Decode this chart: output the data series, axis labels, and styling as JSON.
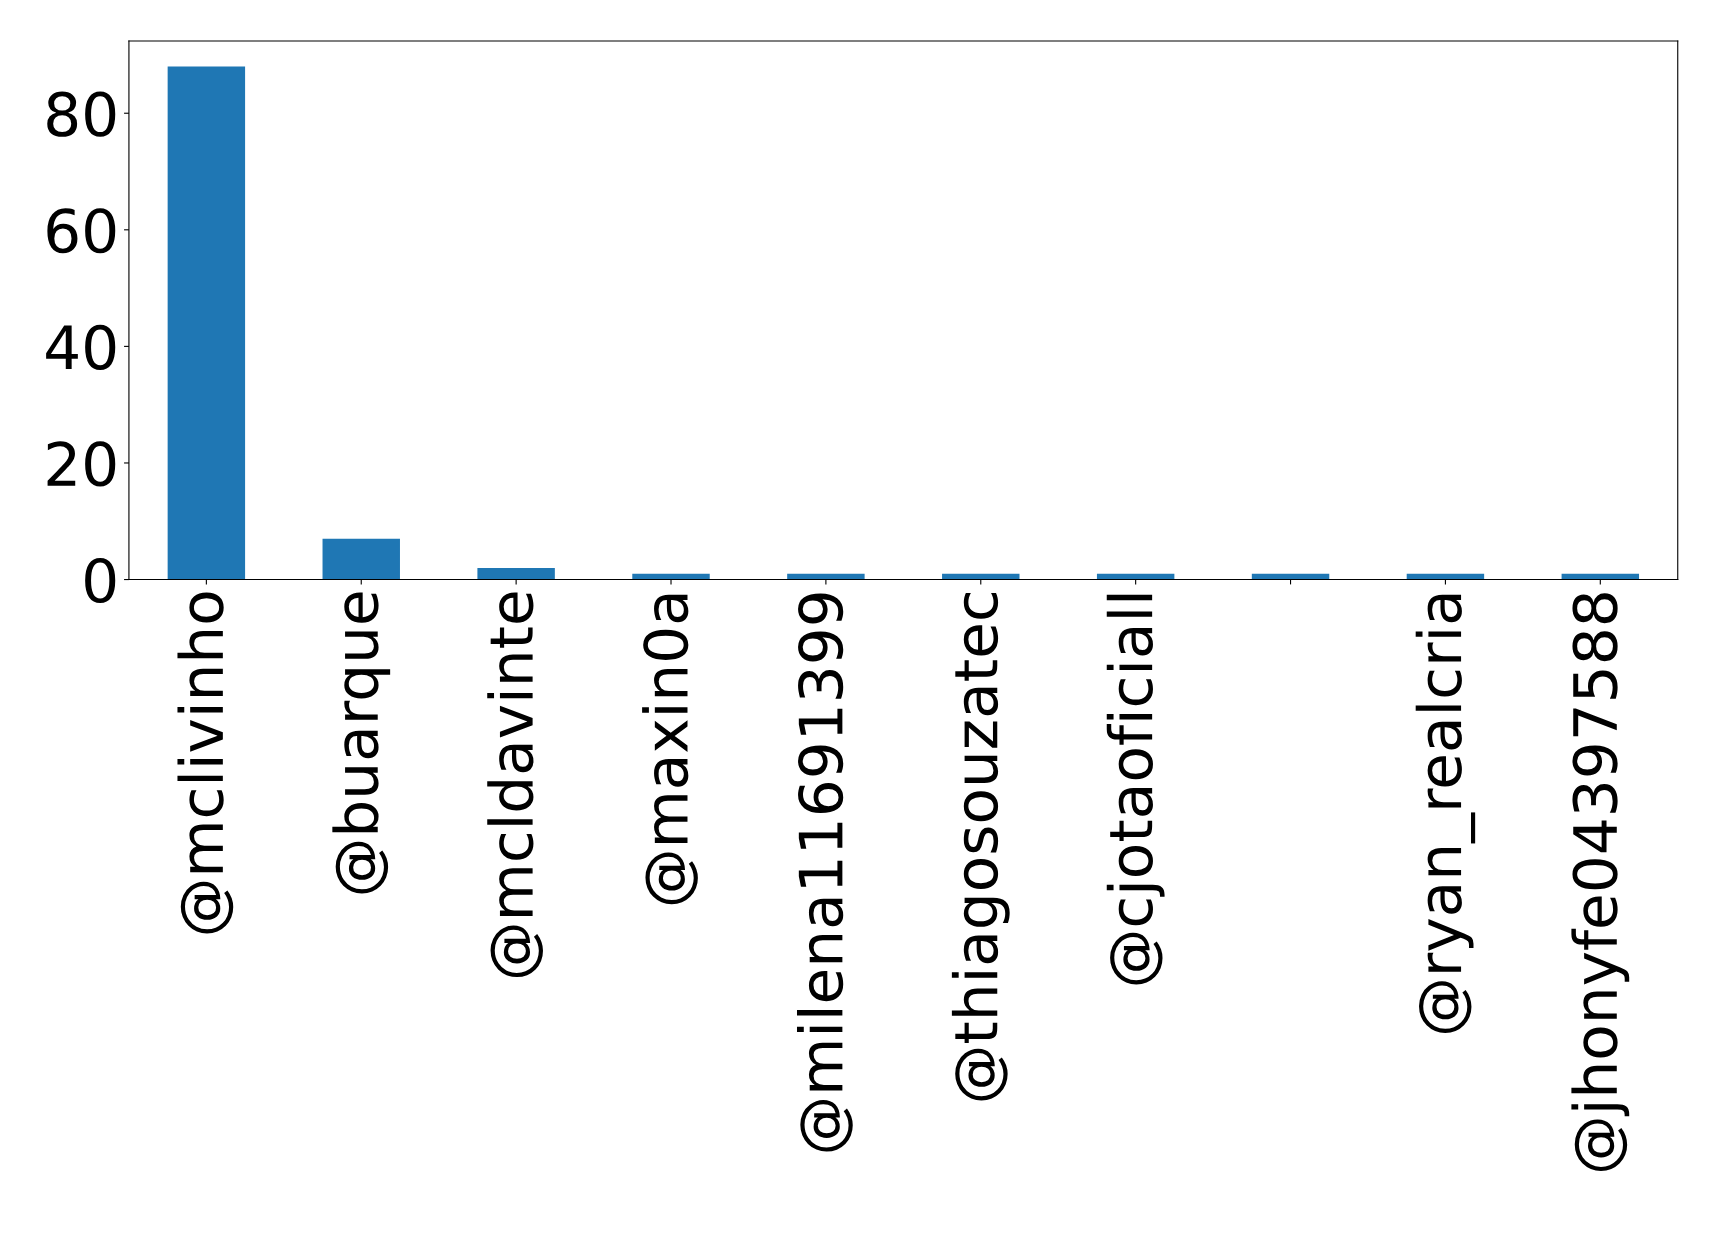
{
  "chart_data": {
    "type": "bar",
    "categories": [
      "@mclivinho",
      "@buarque",
      "@mcldavinte",
      "@maxin0a",
      "@milena11691399",
      "@thiagosouzatec",
      "@cjotaoficiall",
      null,
      "@ryan_realcria",
      "@jhonyfe04397588"
    ],
    "values": [
      88,
      7,
      2,
      1,
      1,
      1,
      1,
      1,
      1,
      1
    ],
    "color": "#1f77b4",
    "ylim": [
      0,
      92.4
    ],
    "yticks": [
      0,
      20,
      40,
      60,
      80
    ],
    "grid": false,
    "legend": false
  }
}
